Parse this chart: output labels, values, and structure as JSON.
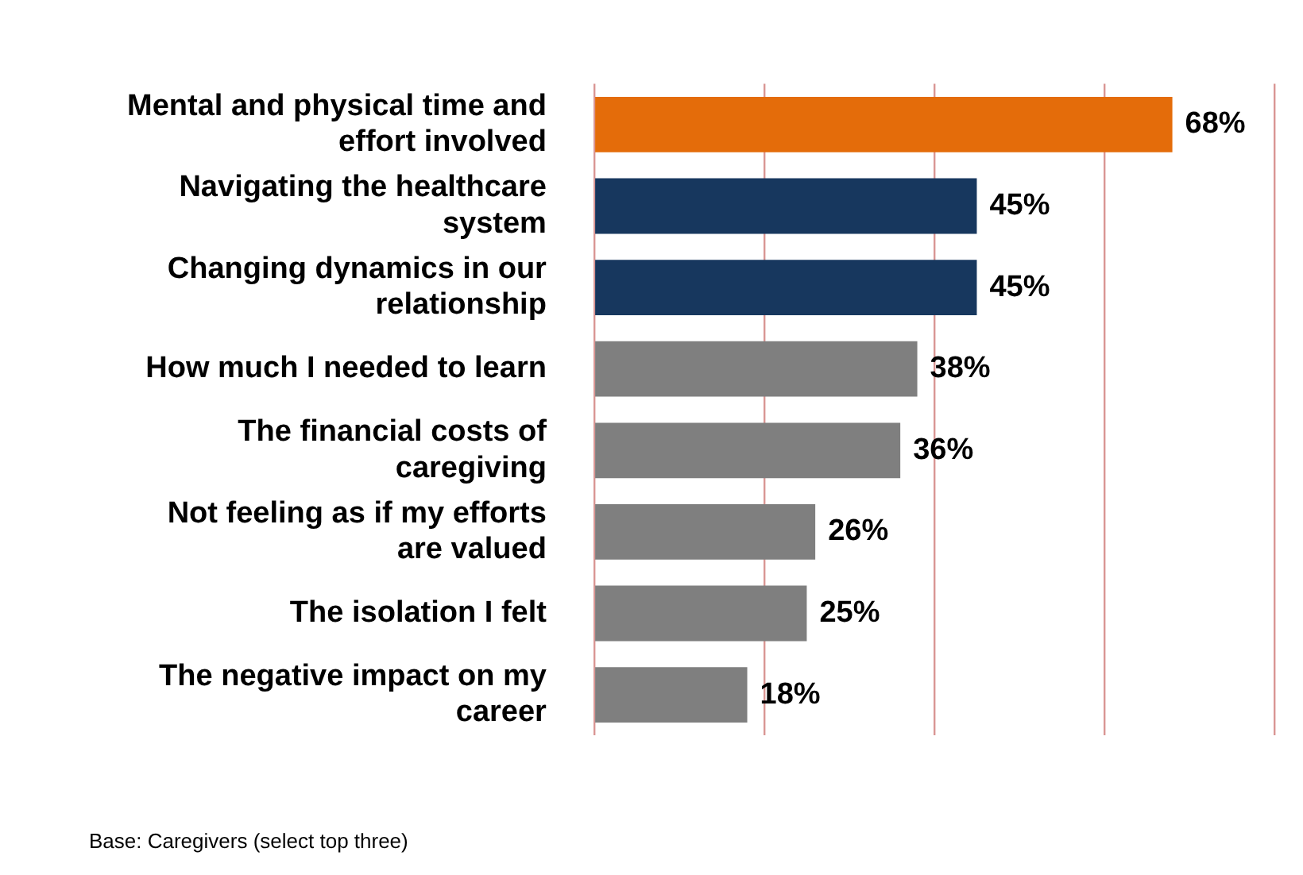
{
  "chart_data": {
    "type": "bar",
    "orientation": "horizontal",
    "categories": [
      "Mental and physical time and effort involved",
      "Navigating the healthcare system",
      "Changing dynamics in our relationship",
      "How much I needed to learn",
      "The financial costs of caregiving",
      "Not feeling as if my efforts are valued",
      "The isolation I felt",
      "The negative impact on my career"
    ],
    "values": [
      68,
      45,
      45,
      38,
      36,
      26,
      25,
      18
    ],
    "colors": [
      "#e46c0a",
      "#17375e",
      "#17375e",
      "#7f7f7f",
      "#7f7f7f",
      "#7f7f7f",
      "#7f7f7f",
      "#7f7f7f"
    ],
    "value_labels": [
      "68%",
      "45%",
      "45%",
      "38%",
      "36%",
      "26%",
      "25%",
      "18%"
    ],
    "xlim": [
      0,
      80
    ],
    "xticks": [
      {
        "value": 0,
        "label": null
      },
      {
        "value": 20,
        "label": null
      },
      {
        "value": 40,
        "label": null
      },
      {
        "value": 60,
        "label": null
      },
      {
        "value": 80,
        "label": null
      }
    ],
    "grid": "x",
    "tick_labels": "y",
    "legend": false,
    "annotations": [
      "Base: Caregivers (select top three)"
    ]
  }
}
